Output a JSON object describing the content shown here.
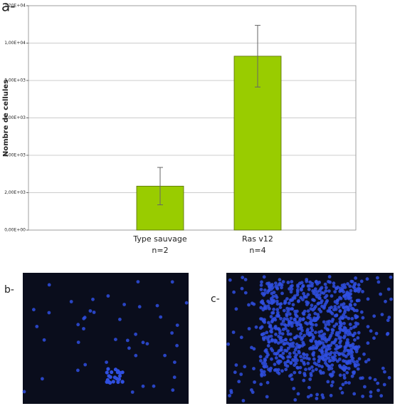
{
  "chart_data": {
    "type": "bar",
    "panel_label": "a-",
    "y_label": "Nombre de cellules",
    "categories": [
      "Type sauvage",
      "Ras v12"
    ],
    "category_notes": [
      "n=2",
      "n=4"
    ],
    "values": [
      2350,
      9300
    ],
    "errors": [
      1000,
      1650
    ],
    "color": "#99cc00",
    "ylim": [
      0,
      12000
    ],
    "yticks": [
      {
        "value": 0,
        "label": "0,00E+00"
      },
      {
        "value": 2000,
        "label": "2,00E+03"
      },
      {
        "value": 4000,
        "label": "4,00E+03"
      },
      {
        "value": 6000,
        "label": "6,00E+03"
      },
      {
        "value": 8000,
        "label": "8,00E+03"
      },
      {
        "value": 10000,
        "label": "1,00E+04"
      },
      {
        "value": 12000,
        "label": "1,20E+04"
      }
    ],
    "grid": true
  },
  "images": [
    {
      "label": "b-"
    },
    {
      "label": "c-"
    }
  ]
}
